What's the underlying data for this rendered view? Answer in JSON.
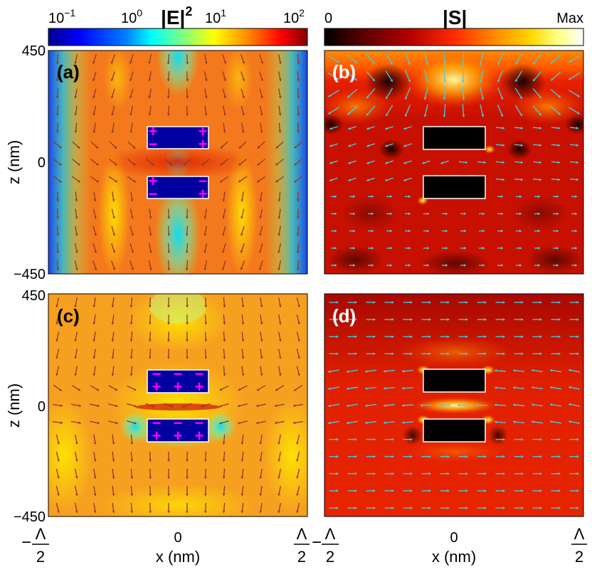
{
  "colorbars": [
    {
      "title_base": "|E|",
      "title_exp": "2",
      "scale": "log",
      "ticks": [
        {
          "base": "10",
          "exp": "−1"
        },
        {
          "base": "10",
          "exp": "0"
        },
        {
          "base": "10",
          "exp": "1"
        },
        {
          "base": "10",
          "exp": "2"
        }
      ],
      "colormap": [
        "#00008f",
        "#0000ff",
        "#0080ff",
        "#00ffff",
        "#80ff80",
        "#ffff00",
        "#ff8000",
        "#ff0000",
        "#800000"
      ]
    },
    {
      "title": "|S|",
      "tick_min": "0",
      "tick_max": "Max",
      "colormap": [
        "#000000",
        "#5a0000",
        "#b40000",
        "#ff2a00",
        "#ff8c00",
        "#ffd800",
        "#ffff80",
        "#ffffff"
      ]
    }
  ],
  "axes": {
    "ylabel": "z (nm)",
    "xlabel": "x (nm)",
    "y_ticks": [
      "450",
      "0",
      "−450"
    ],
    "x_tick_left": "Λ",
    "x_tick_left_prefix": "−",
    "x_tick_mid": "0",
    "x_tick_right": "Λ",
    "x_tick_right_prefix": "",
    "x_tick_den": "2",
    "ylim": [
      -450,
      450
    ],
    "xlim": [
      "-Λ/2",
      "Λ/2"
    ]
  },
  "chart_data": [
    {
      "type": "heatmap",
      "panel": "(a)",
      "quantity": "|E|^2",
      "arrow_color": "#8b3a2a",
      "charges_top": [
        "+",
        "+",
        "−",
        "+"
      ],
      "charges_bottom": [
        "+",
        "−",
        "−",
        "+"
      ]
    },
    {
      "type": "heatmap",
      "panel": "(b)",
      "quantity": "|S|",
      "arrow_color": "#3fd0e8"
    },
    {
      "type": "heatmap",
      "panel": "(c)",
      "quantity": "|E|^2",
      "arrow_color": "#8b3a2a",
      "charges_top": [
        "−",
        "−",
        "+",
        "+"
      ],
      "charges_bottom": [
        "−",
        "−",
        "+",
        "+"
      ]
    },
    {
      "type": "heatmap",
      "panel": "(d)",
      "quantity": "|S|",
      "arrow_color": "#3fd0e8"
    }
  ],
  "accents": {
    "charge_color": "#ff00ff",
    "rod_outline": "#ffffff"
  }
}
